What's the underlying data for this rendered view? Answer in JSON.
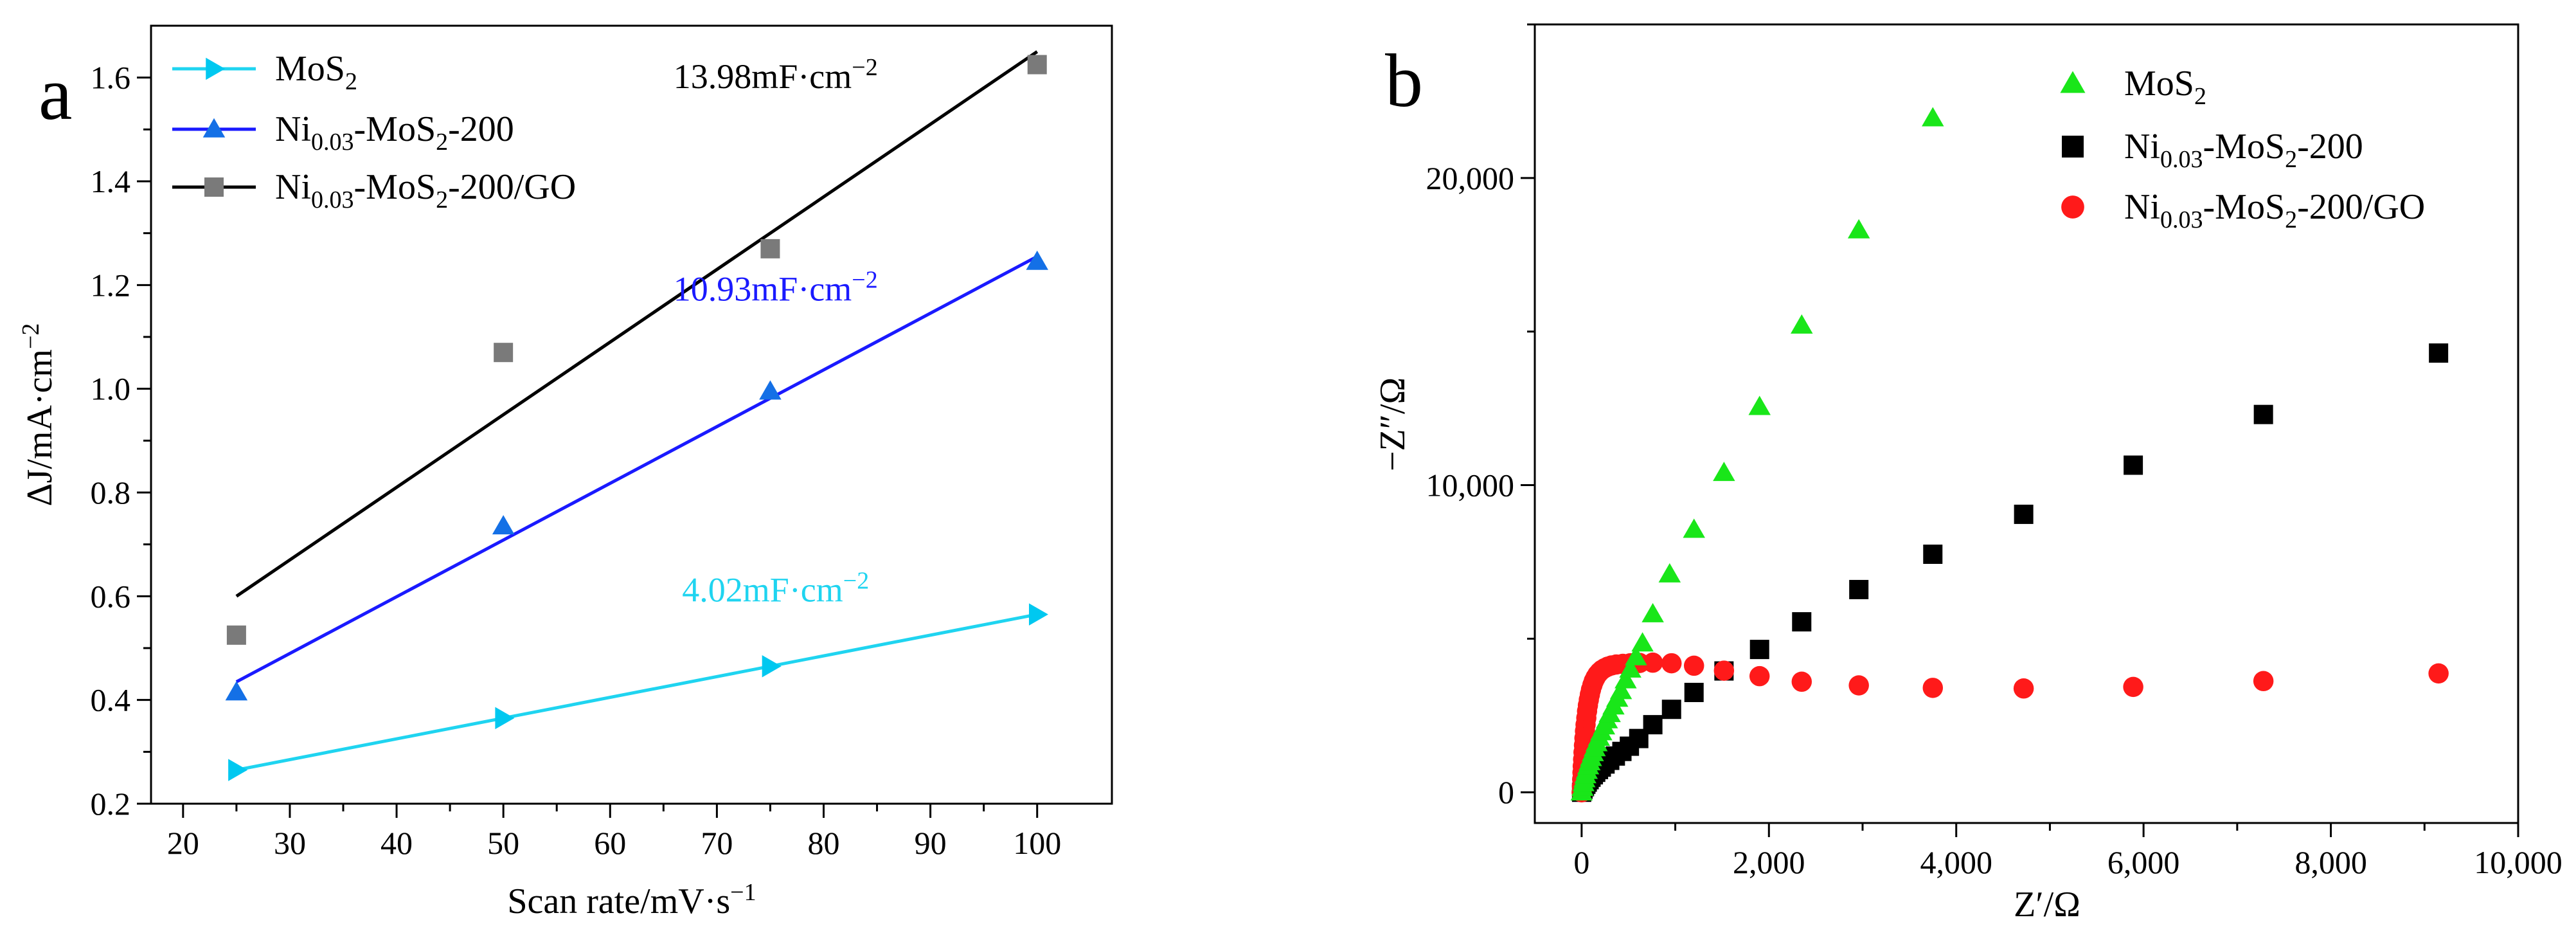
{
  "chart_data": [
    {
      "type": "scatter",
      "panel_label": "a",
      "xlabel": "Scan rate/mV·s",
      "xlabel_sup": "−1",
      "ylabel": "ΔJ/mA·cm",
      "ylabel_sup": "−2",
      "xlim": [
        17,
        107
      ],
      "ylim": [
        0.2,
        1.7
      ],
      "xticks": [
        20,
        30,
        40,
        50,
        60,
        70,
        80,
        90,
        100
      ],
      "yticks": [
        0.2,
        0.4,
        0.6,
        0.8,
        1.0,
        1.2,
        1.4,
        1.6
      ],
      "ytick_labels": [
        "0.2",
        "0.4",
        "0.6",
        "0.8",
        "1.0",
        "1.2",
        "1.4",
        "1.6"
      ],
      "legend_position": "top-left",
      "legend": [
        {
          "base": "MoS",
          "sub": "2",
          "rest": ""
        },
        {
          "base": "Ni",
          "sub": "0.03",
          "rest": "-MoS",
          "sub2": "2",
          "rest2": "-200"
        },
        {
          "base": "Ni",
          "sub": "0.03",
          "rest": "-MoS",
          "sub2": "2",
          "rest2": "-200/GO"
        }
      ],
      "series": [
        {
          "name": "MoS2",
          "marker": "triangle-right",
          "marker_color": "#00c8f0",
          "line_color": "#1fd4f0",
          "x": [
            25,
            50,
            75,
            100
          ],
          "y": [
            0.265,
            0.365,
            0.465,
            0.565
          ],
          "fit": [
            [
              25,
              0.265
            ],
            [
              100,
              0.565
            ]
          ],
          "annotation": "4.02mF·cm",
          "annotation_sup": "−2",
          "annotation_color": "#1fd4f0",
          "annotation_at": [
            75.5,
            0.59
          ]
        },
        {
          "name": "Ni0.03-MoS2-200",
          "marker": "triangle-up",
          "marker_color": "#1470e6",
          "line_color": "#1a1aff",
          "x": [
            25,
            50,
            75,
            100
          ],
          "y": [
            0.415,
            0.735,
            0.995,
            1.245
          ],
          "fit": [
            [
              25,
              0.435
            ],
            [
              100,
              1.255
            ]
          ],
          "annotation": "10.93mF·cm",
          "annotation_sup": "−2",
          "annotation_color": "#1a1aff",
          "annotation_at": [
            75.5,
            1.17
          ]
        },
        {
          "name": "Ni0.03-MoS2-200/GO",
          "marker": "square",
          "marker_color": "#7a7a7a",
          "line_color": "#000000",
          "x": [
            25,
            50,
            75,
            100
          ],
          "y": [
            0.525,
            1.07,
            1.27,
            1.625
          ],
          "fit": [
            [
              25,
              0.6
            ],
            [
              100,
              1.65
            ]
          ],
          "annotation": "13.98mF·cm",
          "annotation_sup": "−2",
          "annotation_color": "#000000",
          "annotation_at": [
            75.5,
            1.58
          ]
        }
      ]
    },
    {
      "type": "scatter",
      "panel_label": "b",
      "xlabel": "Z′/Ω",
      "ylabel": "−Z″/Ω",
      "xlim": [
        -500,
        10000
      ],
      "ylim": [
        -1000,
        25000
      ],
      "xticks": [
        0,
        2000,
        4000,
        6000,
        8000,
        10000
      ],
      "xtick_labels": [
        "0",
        "2,000",
        "4,000",
        "6,000",
        "8,000",
        "10,000"
      ],
      "yticks": [
        0,
        10000,
        20000
      ],
      "ytick_labels": [
        "0",
        "10,000",
        "20,000"
      ],
      "legend_position": "top-right",
      "legend": [
        {
          "base": "MoS",
          "sub": "2",
          "rest": ""
        },
        {
          "base": "Ni",
          "sub": "0.03",
          "rest": "-MoS",
          "sub2": "2",
          "rest2": "-200"
        },
        {
          "base": "Ni",
          "sub": "0.03",
          "rest": "-MoS",
          "sub2": "2",
          "rest2": "-200/GO"
        }
      ],
      "series": [
        {
          "name": "MoS2",
          "marker": "triangle-up",
          "marker_color": "#19e619",
          "x": [
            0,
            10,
            20,
            30,
            40,
            55,
            70,
            85,
            100,
            120,
            140,
            160,
            185,
            210,
            240,
            270,
            300,
            340,
            380,
            420,
            470,
            520,
            580,
            650,
            760,
            940,
            1200,
            1520,
            1900,
            2350,
            2960,
            3750
          ],
          "y": [
            0,
            150,
            300,
            430,
            560,
            700,
            850,
            980,
            1120,
            1280,
            1440,
            1600,
            1780,
            1960,
            2150,
            2350,
            2550,
            2800,
            3050,
            3300,
            3650,
            4000,
            4400,
            4850,
            5800,
            7100,
            8550,
            10400,
            12550,
            15200,
            18300,
            21950
          ]
        },
        {
          "name": "Ni0.03-MoS2-200",
          "marker": "square",
          "marker_color": "#000000",
          "x": [
            0,
            15,
            30,
            45,
            60,
            80,
            100,
            125,
            150,
            180,
            210,
            250,
            300,
            360,
            430,
            510,
            610,
            760,
            960,
            1200,
            1520,
            1900,
            2350,
            2960,
            3750,
            4720,
            5890,
            7280,
            9150
          ],
          "y": [
            0,
            100,
            180,
            260,
            330,
            410,
            490,
            570,
            650,
            740,
            820,
            920,
            1040,
            1180,
            1330,
            1500,
            1750,
            2200,
            2700,
            3250,
            3950,
            4650,
            5550,
            6600,
            7750,
            9050,
            10650,
            12300,
            14300
          ]
        },
        {
          "name": "Ni0.03-MoS2-200/GO",
          "marker": "circle",
          "marker_color": "#ff1a1a",
          "x": [
            0,
            3,
            6,
            9,
            12,
            16,
            20,
            25,
            30,
            36,
            42,
            50,
            58,
            67,
            77,
            88,
            100,
            115,
            130,
            148,
            168,
            190,
            215,
            245,
            280,
            320,
            370,
            440,
            520,
            620,
            760,
            960,
            1200,
            1520,
            1900,
            2350,
            2960,
            3750,
            4720,
            5890,
            7280,
            9150
          ],
          "y": [
            0,
            200,
            420,
            640,
            850,
            1070,
            1300,
            1530,
            1760,
            1990,
            2200,
            2420,
            2640,
            2830,
            3010,
            3180,
            3340,
            3490,
            3620,
            3730,
            3830,
            3910,
            3980,
            4040,
            4090,
            4130,
            4160,
            4180,
            4200,
            4210,
            4220,
            4200,
            4120,
            3960,
            3780,
            3600,
            3480,
            3400,
            3380,
            3430,
            3620,
            3870
          ]
        }
      ]
    }
  ]
}
